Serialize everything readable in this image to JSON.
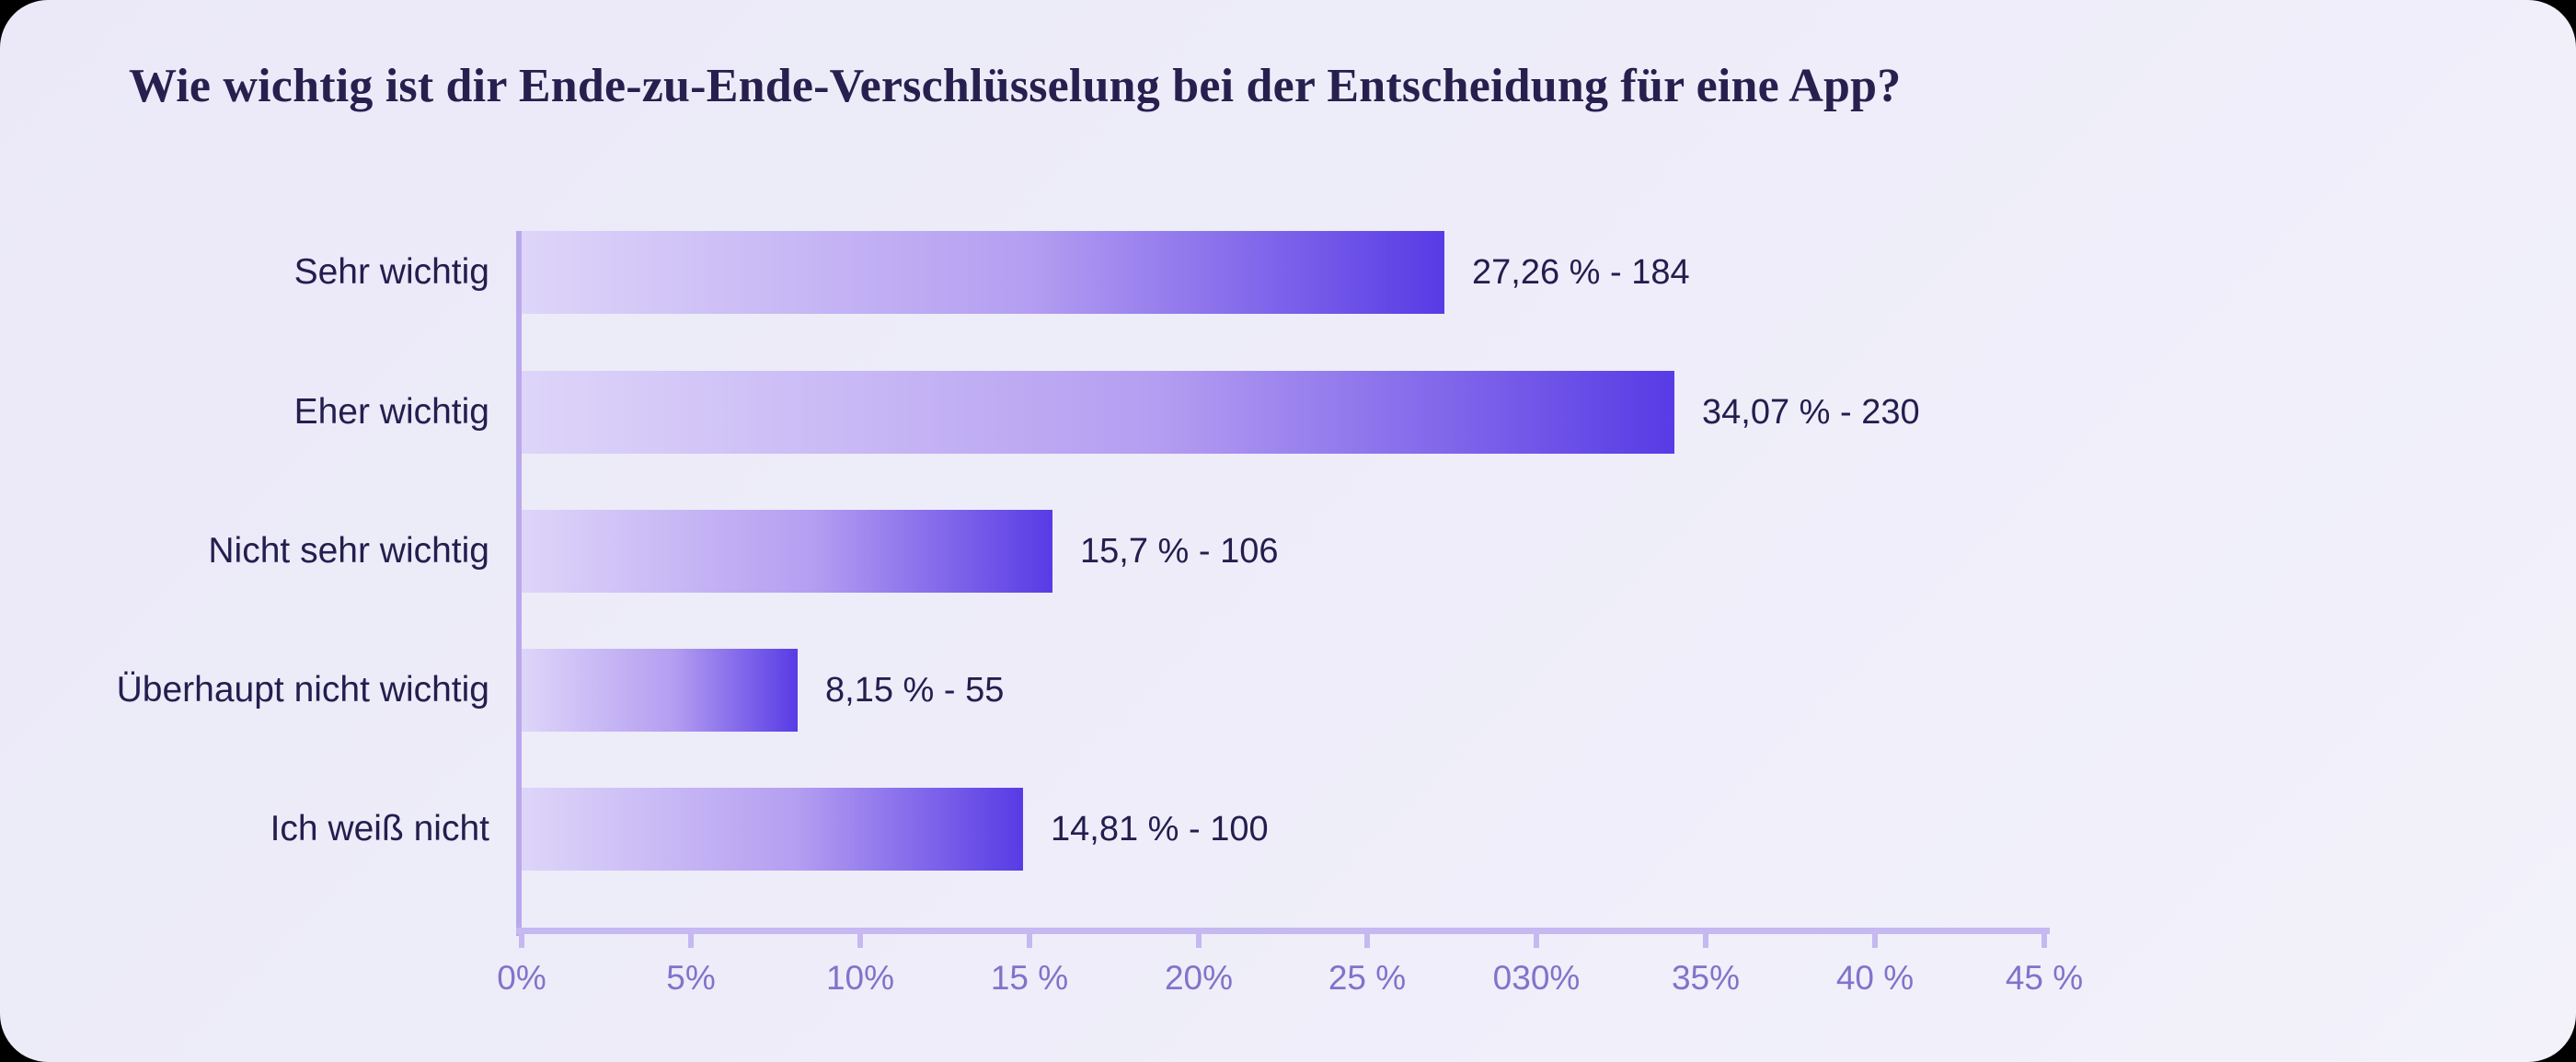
{
  "title": "Wie wichtig ist dir Ende-zu-Ende-Verschlüsselung bei der Entscheidung für eine App?",
  "chart_data": {
    "type": "bar",
    "orientation": "horizontal",
    "title": "Wie wichtig ist dir Ende-zu-Ende-Verschlüsselung bei der Entscheidung für eine App?",
    "categories": [
      "Sehr wichtig",
      "Eher wichtig",
      "Nicht sehr wichtig",
      "Überhaupt nicht wichtig",
      "Ich weiß nicht"
    ],
    "values": [
      27.26,
      34.07,
      15.7,
      8.15,
      14.81
    ],
    "counts": [
      184,
      230,
      106,
      55,
      100
    ],
    "value_labels": [
      "27,26 % - 184",
      "34,07 % - 230",
      "15,7 % - 106",
      "8,15 % - 55",
      "14,81 % - 100"
    ],
    "x_ticks": [
      "0%",
      "5%",
      "10%",
      "15 %",
      "20%",
      "25 %",
      "030%",
      "35%",
      "40 %",
      "45 %"
    ],
    "x_tick_values": [
      0,
      5,
      10,
      15,
      20,
      25,
      30,
      35,
      40,
      45
    ],
    "xlim": [
      0,
      45
    ],
    "xlabel": "",
    "ylabel": "",
    "grid": false,
    "legend": false,
    "colors": {
      "bar_gradient_start": "#ded5f9",
      "bar_gradient_end": "#583be5",
      "axis_line": "#c6b8f1",
      "tick_label_text": "#8372cb",
      "category_text": "#241e4f",
      "value_text": "#241e4f",
      "title_text": "#27204f",
      "panel_background": "#eeedf9",
      "outer_background": "#000000"
    }
  }
}
